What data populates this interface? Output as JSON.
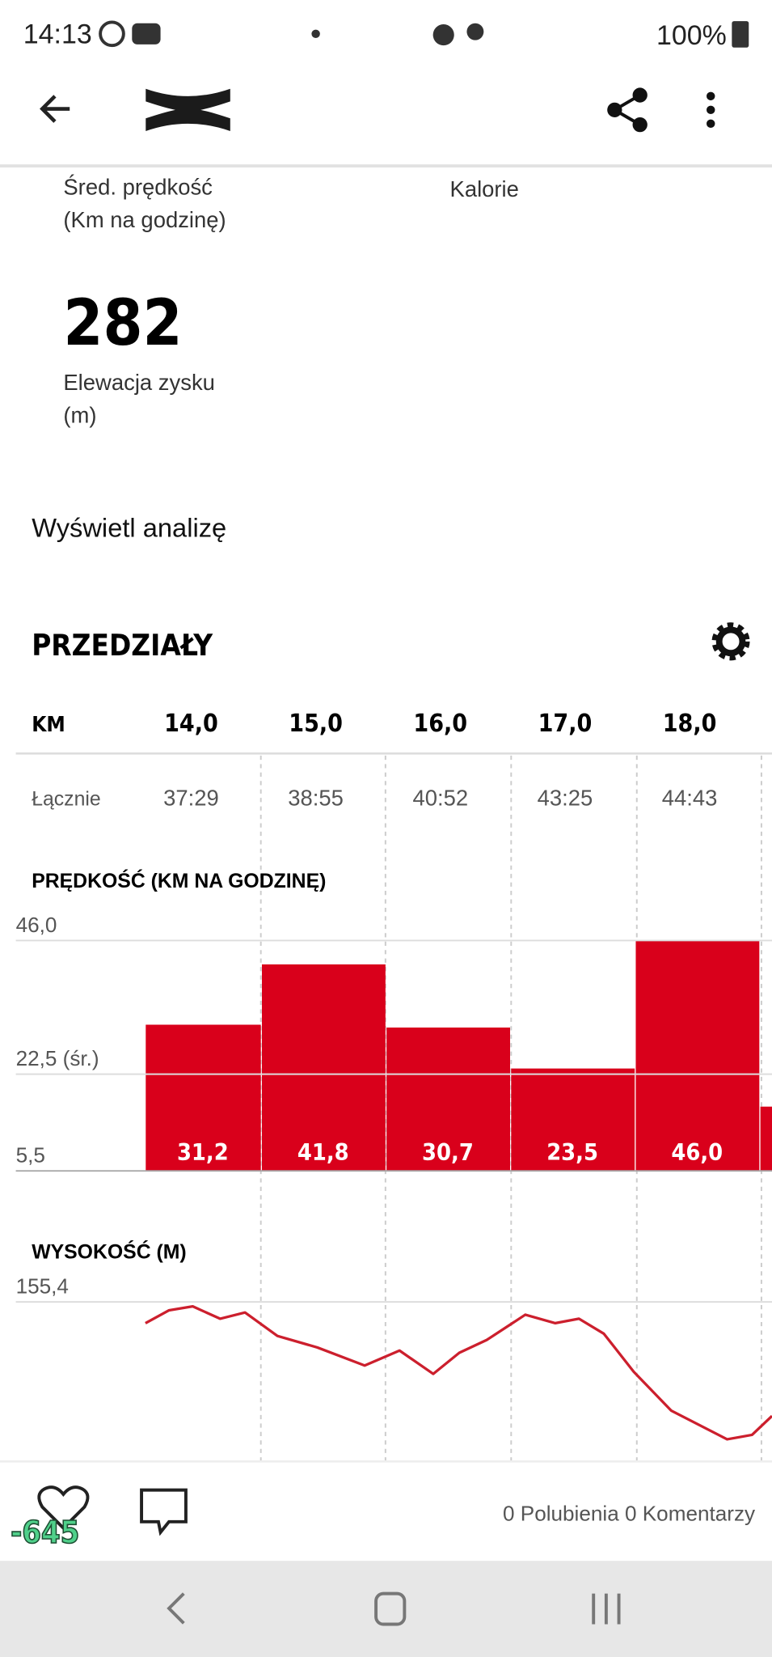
{
  "status_bar": {
    "time": "14:13",
    "battery": "100%"
  },
  "stats": {
    "avg_speed_label": "Śred. prędkość (Km na godzinę)",
    "calories_label": "Kalorie",
    "elevation_value": "282",
    "elevation_label": "Elewacja zysku (m)"
  },
  "analysis_link": "Wyświetl analizę",
  "intervals": {
    "title": "PRZEDZIAŁY",
    "table": {
      "header": [
        "KM",
        "14,0",
        "15,0",
        "16,0",
        "17,0",
        "18,0"
      ],
      "rows": [
        [
          "Łącznie",
          "37:29",
          "38:55",
          "40:52",
          "43:25",
          "44:43"
        ]
      ]
    }
  },
  "chart_data": [
    {
      "type": "bar",
      "title": "PRĘDKOŚĆ (KM NA GODZINĘ)",
      "values": [
        31.2,
        41.8,
        30.7,
        23.5,
        46.0,
        16.8
      ],
      "value_labels": [
        "31,2",
        "41,8",
        "30,7",
        "23,5",
        "46,0",
        null
      ],
      "color": "#d9001b",
      "ylim": [
        5.5,
        46
      ],
      "yticks": [
        {
          "value": 46,
          "label": "46,0"
        },
        {
          "value": 22.5,
          "label": "22,5 (śr.)"
        },
        {
          "value": 5.5,
          "label": "5,5"
        }
      ],
      "grid": true
    },
    {
      "type": "line",
      "title": "WYSOKOŚĆ (M)",
      "x": [
        13.07,
        13.26,
        13.45,
        13.67,
        13.87,
        14.13,
        14.45,
        14.83,
        15.11,
        15.38,
        15.59,
        15.81,
        16.12,
        16.36,
        16.55,
        16.75,
        16.99,
        17.29,
        17.74,
        17.94,
        18.1
      ],
      "values": [
        150.6,
        153.5,
        154.4,
        151.6,
        153.0,
        147.7,
        145.1,
        141.0,
        144.4,
        139.1,
        143.9,
        146.8,
        152.5,
        150.6,
        151.6,
        148.2,
        139.6,
        130.8,
        124.3,
        125.3,
        129.6
      ],
      "color": "#cc1f2d",
      "xlim": [
        12.03,
        18.1
      ],
      "ylim": [
        120,
        155.4
      ],
      "yticks": [
        {
          "value": 155.4,
          "label": "155,4"
        }
      ],
      "grid": true
    }
  ],
  "footer": {
    "badge": "-645",
    "summary": "0 Polubienia 0 Komentarzy"
  }
}
